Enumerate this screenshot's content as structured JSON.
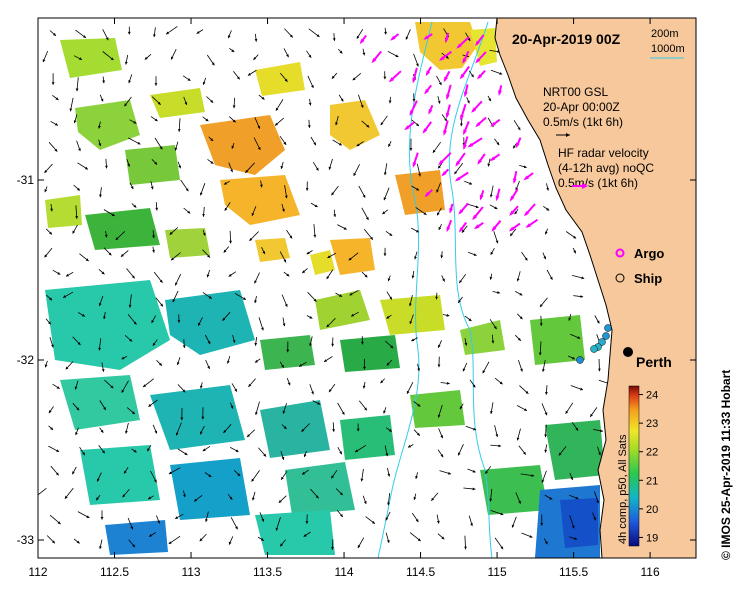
{
  "title": "20-Apr-2019 00Z",
  "bathymetry_legend": {
    "line1": "200m",
    "line2": "1000m"
  },
  "product": {
    "name": "NRT00 GSL",
    "time": "20-Apr 00:00Z",
    "scale": "0.5m/s (1kt 6h)"
  },
  "hf_radar": {
    "line1": "HF radar velocity",
    "line2": "(4-12h avg) noQC",
    "scale": "0.5m/s (1kt 6h)"
  },
  "markers": {
    "argo": "Argo",
    "ship": "Ship"
  },
  "city": {
    "name": "Perth",
    "lon": 115.86,
    "lat": -31.95
  },
  "x_axis": {
    "range": [
      112,
      116.3
    ],
    "ticks": [
      "112",
      "112.5",
      "113",
      "113.5",
      "114",
      "114.5",
      "115",
      "115.5",
      "116"
    ]
  },
  "y_axis": {
    "range": [
      -33.1,
      -30.1
    ],
    "ticks": [
      "-31",
      "-32",
      "-33"
    ]
  },
  "colorbar": {
    "label": "4h comp, p50, All Sats",
    "min": 18.7,
    "max": 24.3,
    "ticks": [
      "24",
      "23",
      "22",
      "21",
      "20",
      "19"
    ]
  },
  "credit": "© IMOS 25-Apr-2019 11:33 Hobart",
  "colors": {
    "land": "#f7c89b",
    "radar_arrow": "#ff00ff",
    "bathy_line": "#33ccee"
  }
}
